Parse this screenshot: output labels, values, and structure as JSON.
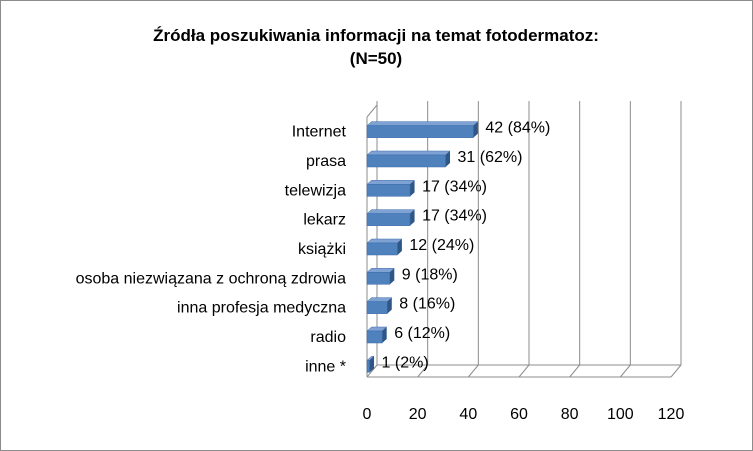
{
  "chart_data": {
    "type": "bar",
    "orientation": "horizontal",
    "style": "3d",
    "title": "Źródła poszukiwania  informacji na temat fotodermatoz:",
    "subtitle": "(N=50)",
    "categories": [
      "Internet",
      "prasa",
      "telewizja",
      "lekarz",
      "książki",
      "osoba niezwiązana z ochroną zdrowia",
      "inna profesja  medyczna",
      "radio",
      "inne *"
    ],
    "values": [
      42,
      31,
      17,
      17,
      12,
      9,
      8,
      6,
      1
    ],
    "data_labels": [
      "42 (84%)",
      "31 (62%)",
      "17 (34%)",
      "17 (34%)",
      "12 (24%)",
      "9 (18%)",
      "8 (16%)",
      "6 (12%)",
      "1 (2%)"
    ],
    "xlim": [
      0,
      120
    ],
    "x_ticks": [
      "0",
      "20",
      "40",
      "60",
      "80",
      "100",
      "120"
    ],
    "xlabel": "",
    "ylabel": "",
    "grid": "vertical",
    "legend": "none",
    "colors": {
      "bar_front": "#4F81BD",
      "bar_top": "#7FA2D4",
      "bar_side": "#2E5687",
      "grid": "#8c8c8c"
    }
  }
}
